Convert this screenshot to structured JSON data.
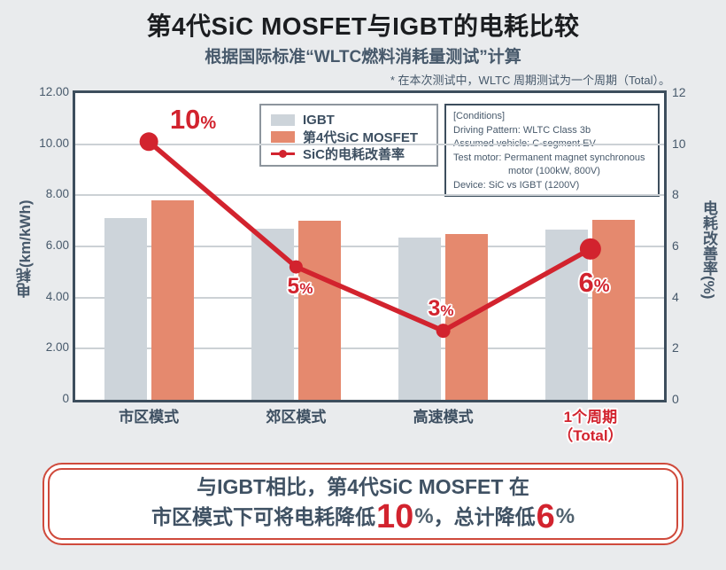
{
  "header": {
    "title": "第4代SiC MOSFET与IGBT的电耗比较",
    "subtitle": "根据国际标准“WLTC燃料消耗量测试”计算",
    "note": "* 在本次测试中，WLTC 周期测试为一个周期（Total）。"
  },
  "colors": {
    "page_bg": "#e9ebed",
    "accent_red": "#d2232e",
    "igbt_gray": "#cdd4da",
    "sic_salmon": "#e5896e",
    "slate_text": "#47596b",
    "plot_border": "#3d4e5d",
    "banner_border": "#cf4a3c"
  },
  "legend": {
    "items": [
      {
        "swatch": "igbt-box",
        "label": "IGBT"
      },
      {
        "swatch": "sic-box",
        "label": "第4代SiC MOSFET"
      },
      {
        "swatch": "line-marker",
        "label": "SiC的电耗改善率"
      }
    ]
  },
  "conditions": {
    "lines": [
      "[Conditions]",
      "Driving Pattern: WLTC Class 3b",
      "Assumed vehicle: C-segment EV",
      "Test motor: Permanent magnet synchronous",
      "motor (100kW, 800V)",
      "Device: SiC vs IGBT (1200V)"
    ]
  },
  "chart_data": {
    "type": "bar+line",
    "categories": [
      "市区模式",
      "郊区模式",
      "高速模式",
      "1个周期（Total）"
    ],
    "categories_display": [
      [
        "市区模式"
      ],
      [
        "郊区模式"
      ],
      [
        "高速模式"
      ],
      [
        "1个周期",
        "（Total）"
      ]
    ],
    "series": [
      {
        "name": "IGBT",
        "type": "bar",
        "color": "#cdd4da",
        "values": [
          7.1,
          6.7,
          6.35,
          6.65
        ]
      },
      {
        "name": "第4代SiC MOSFET",
        "type": "bar",
        "color": "#e5896e",
        "values": [
          7.8,
          7.0,
          6.5,
          7.05
        ]
      },
      {
        "name": "SiC的电耗改善率",
        "type": "line",
        "color": "#d2232e",
        "values": [
          10,
          5,
          3,
          6
        ],
        "point_labels": [
          "10%",
          "5%",
          "3%",
          "6%"
        ],
        "plotted_values": [
          10.1,
          5.2,
          2.7,
          5.9
        ]
      }
    ],
    "ylabel_left": "电耗(km/kWh)",
    "ylabel_right": "电耗改善率(%)",
    "yticks_left": [
      "12.00",
      "10.00",
      "8.00",
      "6.00",
      "4.00",
      "2.00",
      "0"
    ],
    "yticks_right": [
      "12",
      "10",
      "8",
      "6",
      "4",
      "2",
      "0"
    ],
    "ylim": [
      0,
      12
    ],
    "grid": "horizontal",
    "legend_position": "top-inside"
  },
  "banner": {
    "line1": "与IGBT相比，第4代SiC MOSFET 在",
    "line2_segments": [
      {
        "t": "市区模式下可将电耗降低",
        "s": "bt"
      },
      {
        "t": "10",
        "s": "num"
      },
      {
        "t": "%",
        "s": "pctg"
      },
      {
        "t": "，总计降低",
        "s": "bt"
      },
      {
        "t": "6",
        "s": "num"
      },
      {
        "t": "%",
        "s": "pctg"
      }
    ]
  }
}
